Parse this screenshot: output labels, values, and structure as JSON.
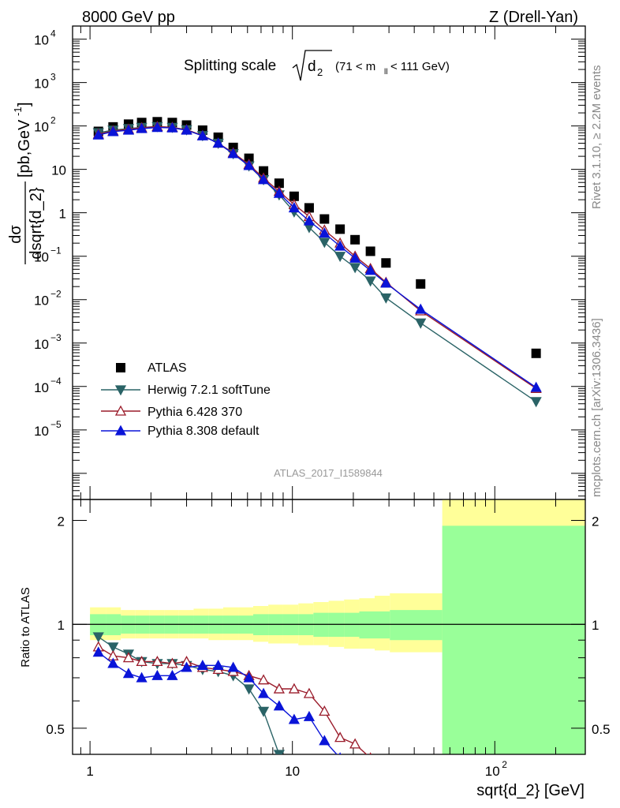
{
  "header": {
    "left": "8000 GeV pp",
    "right": "Z (Drell-Yan)"
  },
  "side_labels": {
    "rivet": "Rivet 3.1.10, ≥ 2.2M events",
    "mcplots": "mcplots.cern.ch [arXiv:1306.3436]"
  },
  "watermark": "ATLAS_2017_I1589844",
  "title": {
    "main": "Splitting scale",
    "sqrt_arg": "d",
    "sqrt_sub": "2",
    "range_pre": "(71 < m",
    "range_sub": "ll",
    "range_post": " < 111 GeV)"
  },
  "ylabel": {
    "numer": "dσ",
    "denom": "dsqrt{d_2}",
    "units": "[pb,GeV",
    "units_sup": "-1",
    "units_close": "]"
  },
  "ratio_ylabel": "Ratio to ATLAS",
  "xlabel": "sqrt{d_2} [GeV]",
  "colors": {
    "atlas": "#000000",
    "herwig": "#2a6366",
    "pythia6": "#9a1b2a",
    "pythia8": "#0a14d8",
    "band_inner": "#99ff99",
    "band_outer": "#ffff99"
  },
  "chart_data": [
    {
      "type": "scatter",
      "panel": "main",
      "xscale": "log",
      "yscale": "log",
      "xlim": [
        0.82,
        280
      ],
      "ylim": [
        2.5e-07,
        20000
      ],
      "y_ticks": [
        {
          "v": 1e-05,
          "base": "10",
          "exp": "−5"
        },
        {
          "v": 0.0001,
          "base": "10",
          "exp": "−4"
        },
        {
          "v": 0.001,
          "base": "10",
          "exp": "−3"
        },
        {
          "v": 0.01,
          "base": "10",
          "exp": "−2"
        },
        {
          "v": 0.1,
          "base": "10",
          "exp": "−1"
        },
        {
          "v": 1,
          "base": "1",
          "exp": ""
        },
        {
          "v": 10,
          "base": "10",
          "exp": ""
        },
        {
          "v": 100,
          "base": "10",
          "exp": "2"
        },
        {
          "v": 1000,
          "base": "10",
          "exp": "3"
        },
        {
          "v": 10000,
          "base": "10",
          "exp": "4"
        }
      ],
      "x": [
        1.1,
        1.3,
        1.55,
        1.8,
        2.15,
        2.55,
        3.0,
        3.6,
        4.3,
        5.1,
        6.1,
        7.2,
        8.6,
        10.2,
        12.1,
        14.4,
        17.2,
        20.4,
        24.3,
        29.0,
        43.0,
        160.0
      ],
      "series": [
        {
          "name": "ATLAS",
          "marker": "square",
          "values": [
            75,
            95,
            110,
            120,
            125,
            120,
            105,
            80,
            55,
            32,
            18,
            9.2,
            4.8,
            2.4,
            1.3,
            0.72,
            0.42,
            0.24,
            0.13,
            0.07,
            0.023,
            0.00058
          ]
        },
        {
          "name": "Herwig 7.2.1 softTune",
          "marker": "triangle-down",
          "values": [
            70,
            80,
            87,
            93,
            97,
            93,
            82,
            60,
            40,
            23,
            12,
            5.8,
            2.6,
            1.05,
            0.46,
            0.21,
            0.1,
            0.055,
            0.027,
            0.011,
            0.0029,
            4.5e-05
          ]
        },
        {
          "name": "Pythia 6.428 370",
          "marker": "triangle-up-open",
          "values": [
            65,
            77,
            84,
            91,
            97,
            93,
            82,
            60,
            40,
            24,
            13,
            6.3,
            3.1,
            1.55,
            0.82,
            0.4,
            0.2,
            0.1,
            0.052,
            0.025,
            0.0055,
            9e-05
          ]
        },
        {
          "name": "Pythia 8.308 default",
          "marker": "triangle-up",
          "values": [
            62,
            74,
            80,
            87,
            92,
            90,
            80,
            59,
            40,
            23,
            12.2,
            5.8,
            2.8,
            1.3,
            0.65,
            0.34,
            0.17,
            0.09,
            0.047,
            0.024,
            0.006,
            9.5e-05
          ]
        }
      ],
      "legend": "lower-left"
    },
    {
      "type": "line",
      "panel": "ratio",
      "xscale": "log",
      "yscale": "log",
      "ylim": [
        0.42,
        2.3
      ],
      "y_ticks": [
        0.5,
        1,
        2
      ],
      "x_ticks": [
        {
          "v": 1,
          "base": "1",
          "exp": ""
        },
        {
          "v": 10,
          "base": "10",
          "exp": ""
        },
        {
          "v": 100,
          "base": "10",
          "exp": "2"
        }
      ],
      "bands": {
        "edges": [
          1.0,
          1.2,
          1.42,
          1.67,
          1.97,
          2.33,
          2.75,
          3.25,
          3.85,
          4.55,
          5.4,
          6.4,
          7.6,
          9.0,
          10.7,
          12.7,
          15.1,
          18.0,
          21.4,
          25.5,
          30.3,
          55.0,
          280.0
        ],
        "inner": [
          [
            0.93,
            1.07
          ],
          [
            0.93,
            1.07
          ],
          [
            0.94,
            1.06
          ],
          [
            0.94,
            1.06
          ],
          [
            0.94,
            1.06
          ],
          [
            0.94,
            1.06
          ],
          [
            0.94,
            1.06
          ],
          [
            0.94,
            1.06
          ],
          [
            0.94,
            1.06
          ],
          [
            0.94,
            1.06
          ],
          [
            0.94,
            1.06
          ],
          [
            0.93,
            1.07
          ],
          [
            0.93,
            1.07
          ],
          [
            0.93,
            1.07
          ],
          [
            0.93,
            1.07
          ],
          [
            0.92,
            1.08
          ],
          [
            0.92,
            1.08
          ],
          [
            0.92,
            1.08
          ],
          [
            0.91,
            1.09
          ],
          [
            0.91,
            1.09
          ],
          [
            0.9,
            1.1
          ],
          [
            0.42,
            1.93
          ]
        ],
        "outer": [
          [
            0.9,
            1.12
          ],
          [
            0.9,
            1.12
          ],
          [
            0.91,
            1.1
          ],
          [
            0.91,
            1.1
          ],
          [
            0.91,
            1.1
          ],
          [
            0.91,
            1.1
          ],
          [
            0.91,
            1.1
          ],
          [
            0.91,
            1.11
          ],
          [
            0.9,
            1.11
          ],
          [
            0.9,
            1.12
          ],
          [
            0.9,
            1.12
          ],
          [
            0.89,
            1.13
          ],
          [
            0.88,
            1.14
          ],
          [
            0.88,
            1.14
          ],
          [
            0.87,
            1.15
          ],
          [
            0.87,
            1.16
          ],
          [
            0.86,
            1.17
          ],
          [
            0.85,
            1.18
          ],
          [
            0.85,
            1.19
          ],
          [
            0.84,
            1.21
          ],
          [
            0.83,
            1.23
          ],
          [
            0.42,
            2.3
          ]
        ]
      },
      "series": [
        {
          "name": "Herwig 7.2.1 softTune",
          "x": [
            1.1,
            1.3,
            1.55,
            1.8,
            2.15,
            2.55,
            3.0,
            3.6,
            4.3,
            5.1,
            6.1,
            7.2,
            8.6,
            10.2
          ],
          "values": [
            0.92,
            0.86,
            0.82,
            0.78,
            0.77,
            0.77,
            0.76,
            0.74,
            0.73,
            0.71,
            0.65,
            0.56,
            0.42,
            0.39
          ]
        },
        {
          "name": "Pythia 6.428 370",
          "x": [
            1.1,
            1.3,
            1.55,
            1.8,
            2.15,
            2.55,
            3.0,
            3.6,
            4.3,
            5.1,
            6.1,
            7.2,
            8.6,
            10.2,
            12.1,
            14.4,
            17.2,
            20.4,
            24.3
          ],
          "values": [
            0.86,
            0.81,
            0.8,
            0.78,
            0.78,
            0.77,
            0.78,
            0.75,
            0.74,
            0.73,
            0.71,
            0.69,
            0.65,
            0.65,
            0.63,
            0.56,
            0.47,
            0.45,
            0.41
          ]
        },
        {
          "name": "Pythia 8.308 default",
          "x": [
            1.1,
            1.3,
            1.55,
            1.8,
            2.15,
            2.55,
            3.0,
            3.6,
            4.3,
            5.1,
            6.1,
            7.2,
            8.6,
            10.2,
            12.1,
            14.4,
            17.2
          ],
          "values": [
            0.83,
            0.77,
            0.72,
            0.7,
            0.71,
            0.71,
            0.75,
            0.76,
            0.76,
            0.75,
            0.7,
            0.63,
            0.58,
            0.53,
            0.54,
            0.46,
            0.41
          ]
        }
      ]
    }
  ]
}
